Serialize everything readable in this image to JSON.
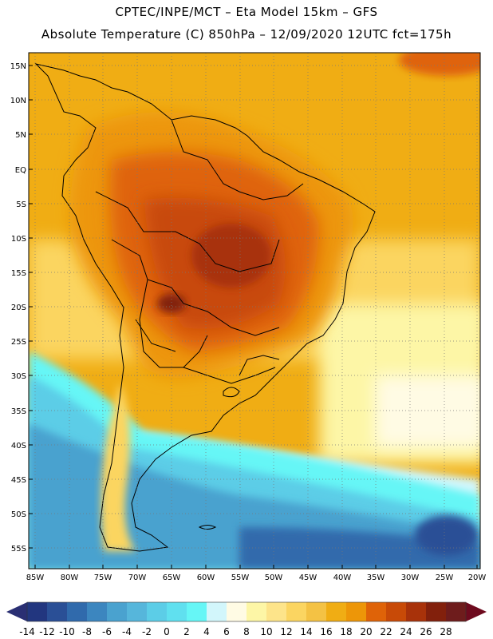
{
  "title_line1": "CPTEC/INPE/MCT –  Eta Model 15km – GFS",
  "title_line2": "Absolute Temperature (C) 850hPa – 12/09/2020 12UTC fct=175h",
  "lat_labels": [
    "15N",
    "10N",
    "5N",
    "EQ",
    "5S",
    "10S",
    "15S",
    "20S",
    "25S",
    "30S",
    "35S",
    "40S",
    "45S",
    "50S",
    "55S"
  ],
  "lon_labels": [
    "85W",
    "80W",
    "75W",
    "70W",
    "65W",
    "60W",
    "55W",
    "50W",
    "45W",
    "40W",
    "35W",
    "30W",
    "25W",
    "20W"
  ],
  "colorbar": {
    "colors": [
      "#22367f",
      "#2a4f96",
      "#306aac",
      "#3c86bf",
      "#4aa2cf",
      "#56b6db",
      "#5ccde7",
      "#60e0ef",
      "#66f6f6",
      "#d2f6fb",
      "#fffbe4",
      "#fdf6a6",
      "#fde48a",
      "#fbd561",
      "#f4c244",
      "#f0ad14",
      "#ed9608",
      "#df6308",
      "#c84a07",
      "#a8320a",
      "#82200c",
      "#6e1c1c"
    ],
    "low_arrow_color": "#2a2f73",
    "high_arrow_color": "#6e0a1e",
    "labels": [
      "-14",
      "-12",
      "-10",
      "-8",
      "-6",
      "-4",
      "-2",
      "0",
      "2",
      "4",
      "6",
      "8",
      "10",
      "12",
      "14",
      "16",
      "18",
      "20",
      "22",
      "24",
      "26",
      "28"
    ]
  }
}
